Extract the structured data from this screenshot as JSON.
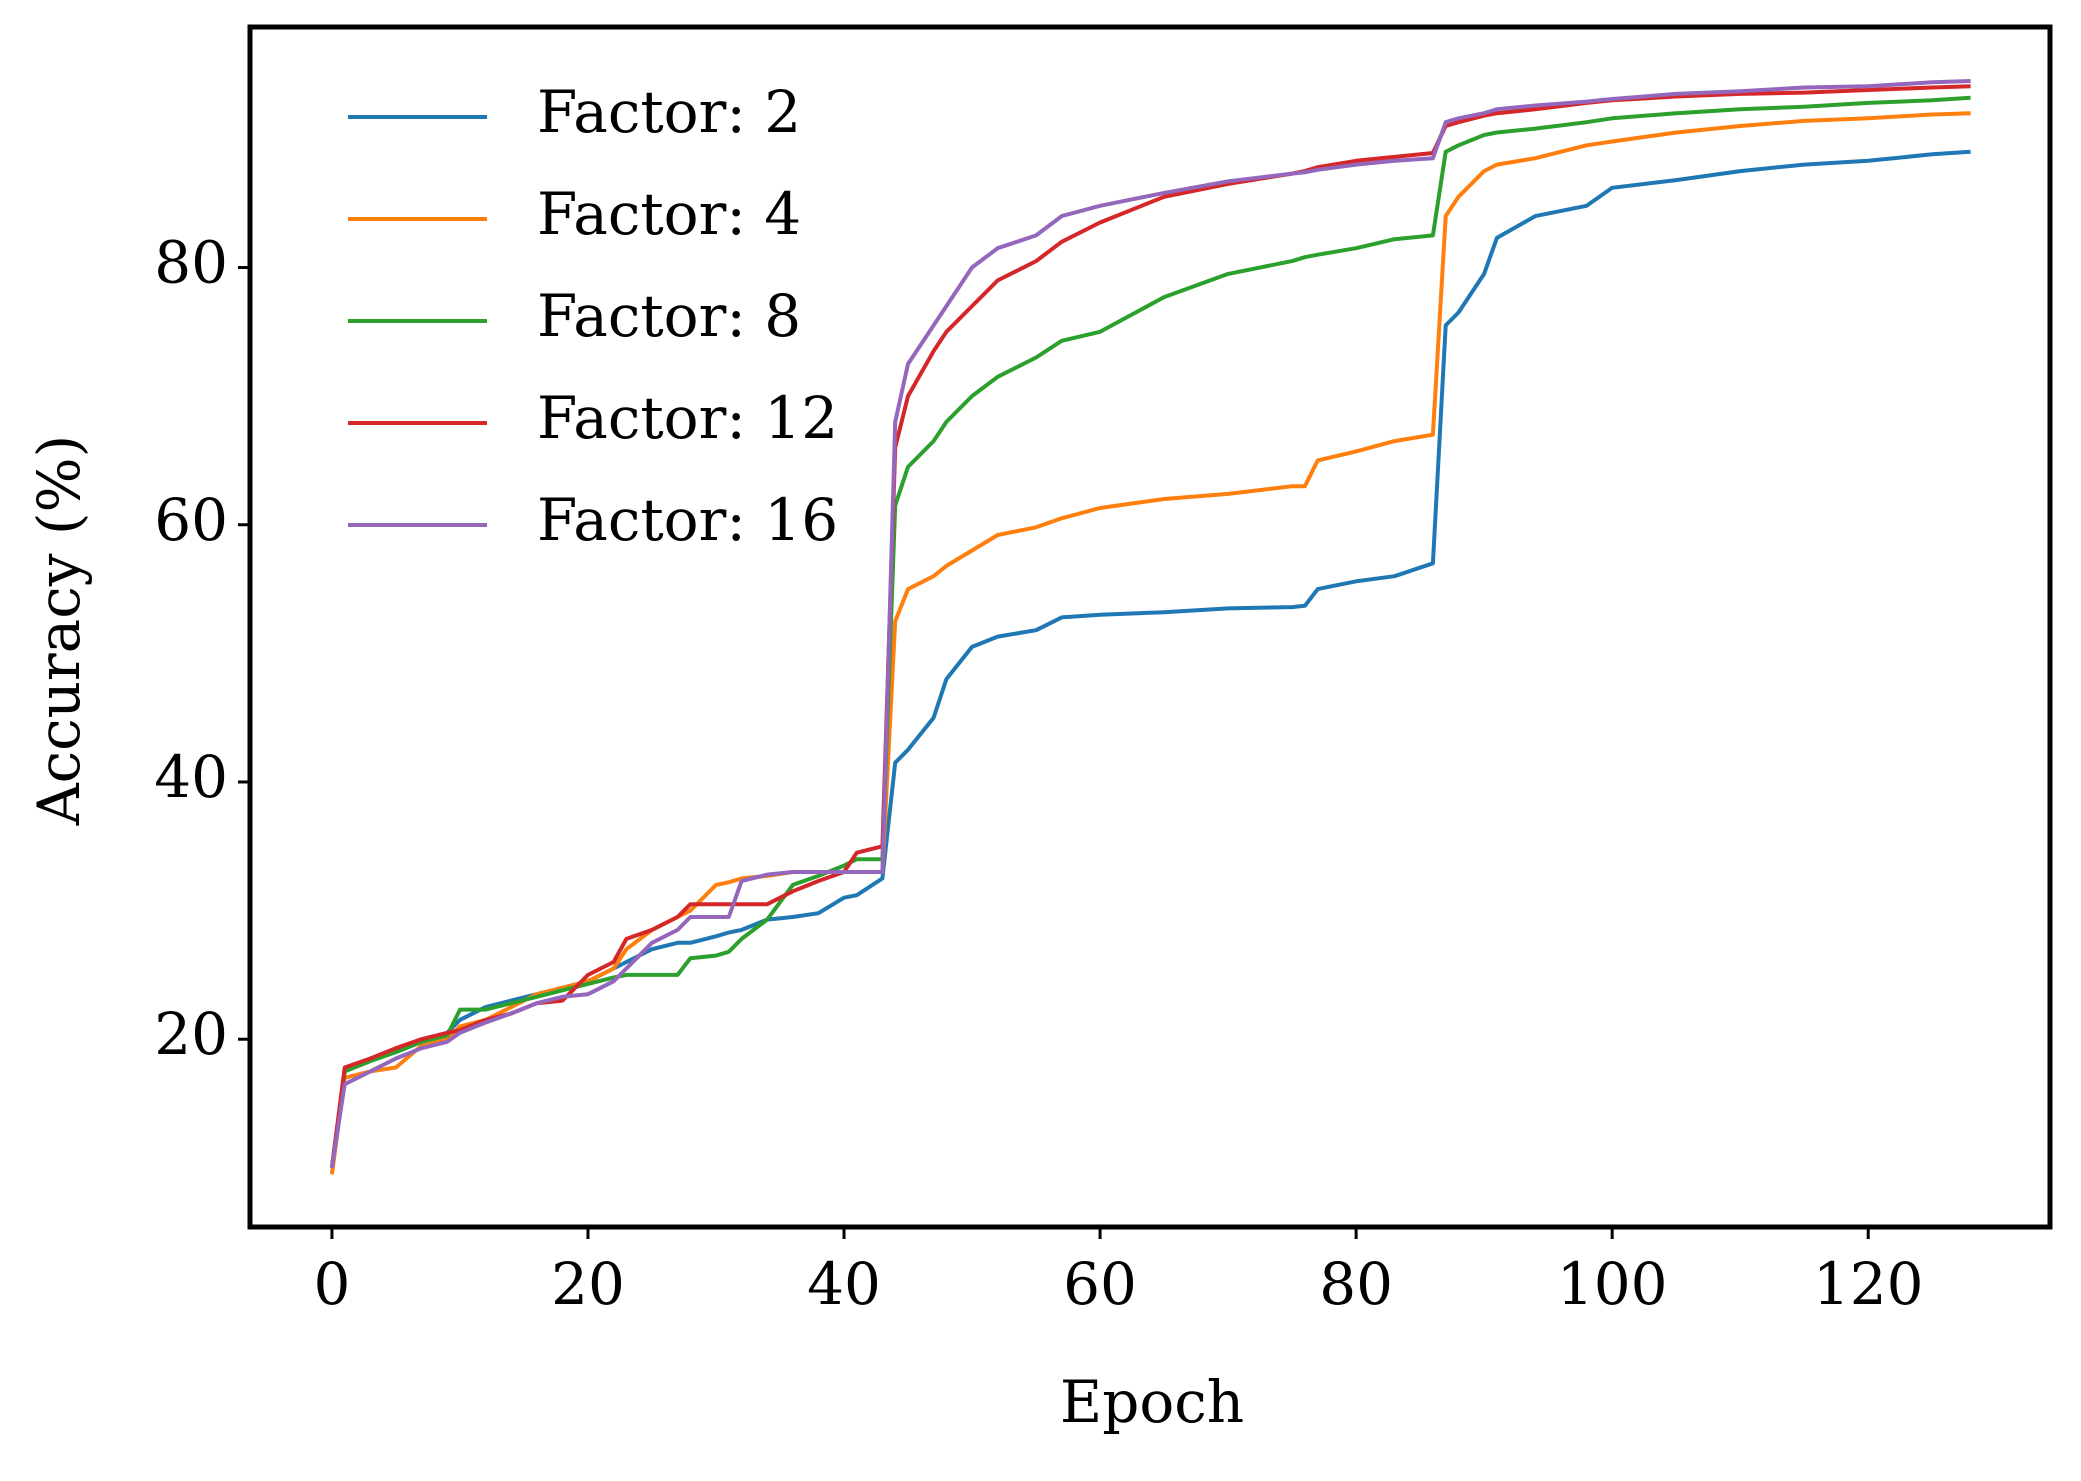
{
  "chart_data": {
    "type": "line",
    "xlabel": "Epoch",
    "ylabel": "Accuracy (%)",
    "x": [
      0,
      1,
      3,
      5,
      7,
      9,
      10,
      12,
      14,
      16,
      18,
      20,
      22,
      23,
      25,
      27,
      28,
      30,
      31,
      32,
      34,
      36,
      38,
      40,
      41,
      43,
      44,
      45,
      47,
      48,
      50,
      52,
      55,
      57,
      60,
      65,
      70,
      75,
      76,
      77,
      80,
      83,
      86,
      87,
      88,
      90,
      91,
      94,
      98,
      100,
      105,
      110,
      115,
      120,
      125,
      128
    ],
    "series": [
      {
        "name": "Factor: 2",
        "color": "#1f77b4",
        "values": [
          10,
          17.5,
          18.5,
          19,
          19.8,
          20.5,
          21.5,
          22.5,
          23,
          23.5,
          24,
          24.5,
          25.5,
          26,
          27,
          27.5,
          27.5,
          28,
          28.3,
          28.5,
          29.3,
          29.5,
          29.8,
          31,
          31.2,
          32.5,
          41.5,
          42.5,
          45,
          48,
          50.5,
          51.3,
          51.8,
          52.8,
          53,
          53.2,
          53.5,
          53.6,
          53.7,
          55,
          55.6,
          56,
          57,
          75.5,
          76.5,
          79.5,
          82.3,
          84,
          84.8,
          86.2,
          86.8,
          87.5,
          88,
          88.3,
          88.8,
          89
        ]
      },
      {
        "name": "Factor: 4",
        "color": "#ff7f0e",
        "values": [
          9.5,
          17,
          17.5,
          17.8,
          19.5,
          20,
          21,
          21.5,
          22.5,
          23.5,
          24,
          24.5,
          25.5,
          27,
          28.5,
          29.5,
          30,
          32,
          32.2,
          32.5,
          32.7,
          33,
          33,
          33,
          33,
          33,
          52.5,
          55,
          56,
          56.8,
          58,
          59.2,
          59.8,
          60.5,
          61.3,
          62,
          62.4,
          63,
          63,
          65,
          65.7,
          66.5,
          67,
          84,
          85.5,
          87.5,
          88,
          88.5,
          89.5,
          89.8,
          90.5,
          91,
          91.4,
          91.6,
          91.9,
          92
        ]
      },
      {
        "name": "Factor: 8",
        "color": "#2ca02c",
        "values": [
          10,
          17.5,
          18.3,
          19,
          19.8,
          20.3,
          22.3,
          22.3,
          22.8,
          23.3,
          23.8,
          24.3,
          24.8,
          25,
          25,
          25,
          26.3,
          26.5,
          26.8,
          27.8,
          29.3,
          32,
          32.7,
          33.5,
          34,
          34,
          61.5,
          64.5,
          66.5,
          68,
          70,
          71.5,
          73,
          74.3,
          75,
          77.7,
          79.5,
          80.5,
          80.8,
          81,
          81.5,
          82.2,
          82.5,
          89,
          89.5,
          90.3,
          90.5,
          90.8,
          91.3,
          91.6,
          92,
          92.3,
          92.5,
          92.8,
          93,
          93.2
        ]
      },
      {
        "name": "Factor: 12",
        "color": "#d62728",
        "values": [
          10,
          17.8,
          18.5,
          19.3,
          20,
          20.5,
          20.7,
          21.5,
          22,
          22.8,
          23,
          25,
          26,
          27.8,
          28.5,
          29.5,
          30.5,
          30.5,
          30.5,
          30.5,
          30.5,
          31.5,
          32.3,
          33,
          34.5,
          35,
          66,
          70,
          73.5,
          75,
          77,
          79,
          80.5,
          82,
          83.5,
          85.5,
          86.5,
          87.3,
          87.5,
          87.8,
          88.3,
          88.6,
          88.9,
          91,
          91.3,
          91.8,
          92,
          92.3,
          92.8,
          93,
          93.3,
          93.5,
          93.6,
          93.8,
          94,
          94.1
        ]
      },
      {
        "name": "Factor: 16",
        "color": "#9467bd",
        "values": [
          10,
          16.5,
          17.5,
          18.5,
          19.3,
          19.8,
          20.5,
          21.3,
          22,
          22.8,
          23.3,
          23.5,
          24.5,
          25.5,
          27.5,
          28.5,
          29.5,
          29.5,
          29.5,
          32.3,
          32.8,
          33,
          33,
          33,
          33,
          33,
          68,
          72.5,
          75.5,
          77,
          80,
          81.5,
          82.5,
          84,
          84.8,
          85.8,
          86.7,
          87.3,
          87.4,
          87.6,
          88,
          88.3,
          88.5,
          91.3,
          91.6,
          92,
          92.3,
          92.6,
          92.9,
          93.1,
          93.5,
          93.7,
          94,
          94.1,
          94.4,
          94.5
        ]
      }
    ],
    "xlim": [
      -6.4,
      134.2
    ],
    "xticks": [
      0,
      20,
      40,
      60,
      80,
      100,
      120
    ],
    "ylim": [
      5.4,
      98.7
    ],
    "yticks": [
      20,
      40,
      60,
      80
    ],
    "legend": "upper left",
    "grid": false
  }
}
